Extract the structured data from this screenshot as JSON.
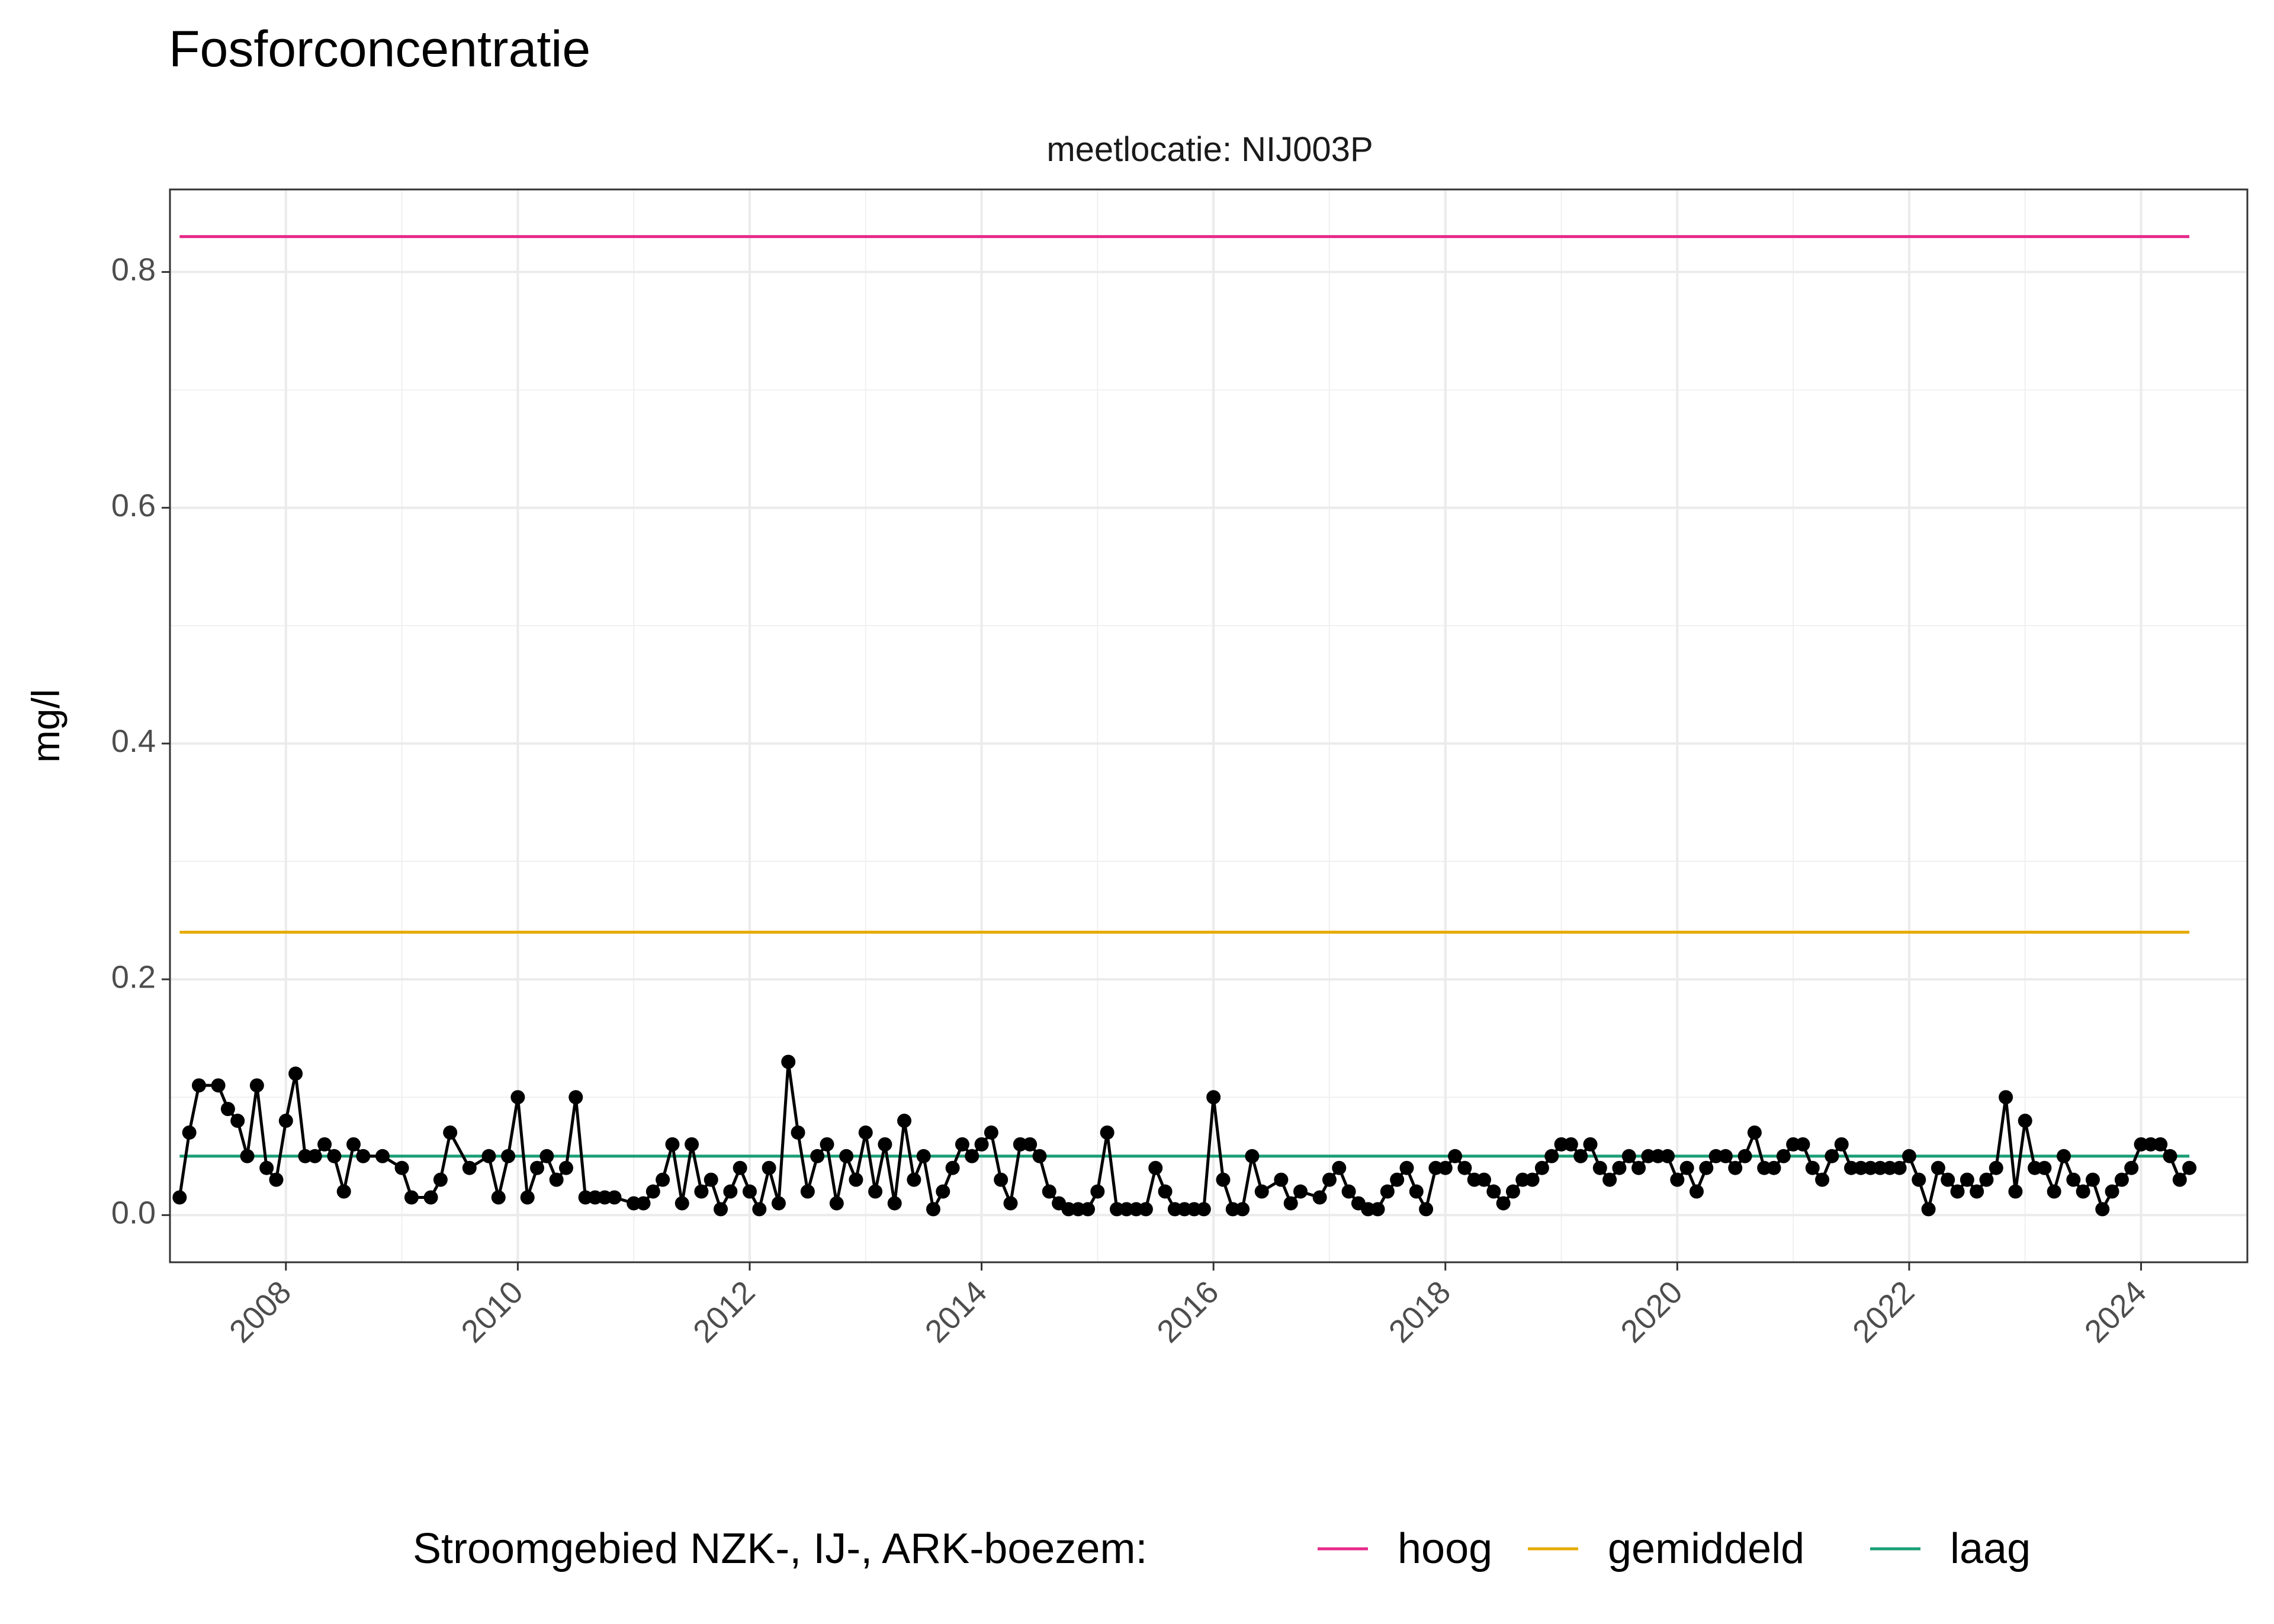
{
  "chart_data": {
    "type": "line",
    "title": "Fosforconcentratie",
    "facet_label": "meetlocatie: NIJ003P",
    "ylabel": "mg/l",
    "xlabel": "",
    "xlim": [
      "2007-01-01",
      "2024-12-01"
    ],
    "ylim": [
      -0.04,
      0.87
    ],
    "y_ticks": [
      0.0,
      0.2,
      0.4,
      0.6,
      0.8
    ],
    "y_tick_labels": [
      "0.0",
      "0.2",
      "0.4",
      "0.6",
      "0.8"
    ],
    "x_ticks": [
      2008,
      2010,
      2012,
      2014,
      2016,
      2018,
      2020,
      2022,
      2024
    ],
    "x_tick_labels": [
      "2008",
      "2010",
      "2012",
      "2014",
      "2016",
      "2018",
      "2020",
      "2022",
      "2024"
    ],
    "grid": true,
    "legend_position": "bottom",
    "legend_title": "Stroomgebied NZK-, IJ-, ARK-boezem:",
    "reference_lines": [
      {
        "name": "hoog",
        "value": 0.83,
        "color": "#e7298a",
        "x_start": "2007-02-01",
        "x_end": "2024-06-01"
      },
      {
        "name": "gemiddeld",
        "value": 0.24,
        "color": "#e6ab02",
        "x_start": "2007-02-01",
        "x_end": "2024-06-01"
      },
      {
        "name": "laag",
        "value": 0.05,
        "color": "#1b9e77",
        "x_start": "2007-02-01",
        "x_end": "2024-06-01"
      }
    ],
    "series": [
      {
        "color": "#000000",
        "points": [
          [
            "2007-02-01",
            0.015
          ],
          [
            "2007-03-01",
            0.07
          ],
          [
            "2007-04-01",
            0.11
          ],
          [
            "2007-06-01",
            0.11
          ],
          [
            "2007-07-01",
            0.09
          ],
          [
            "2007-08-01",
            0.08
          ],
          [
            "2007-09-01",
            0.05
          ],
          [
            "2007-10-01",
            0.11
          ],
          [
            "2007-11-01",
            0.04
          ],
          [
            "2007-12-01",
            0.03
          ],
          [
            "2008-01-01",
            0.08
          ],
          [
            "2008-02-01",
            0.12
          ],
          [
            "2008-03-01",
            0.05
          ],
          [
            "2008-04-01",
            0.05
          ],
          [
            "2008-05-01",
            0.06
          ],
          [
            "2008-06-01",
            0.05
          ],
          [
            "2008-07-01",
            0.02
          ],
          [
            "2008-08-01",
            0.06
          ],
          [
            "2008-09-01",
            0.05
          ],
          [
            "2008-11-01",
            0.05
          ],
          [
            "2009-01-01",
            0.04
          ],
          [
            "2009-02-01",
            0.015
          ],
          [
            "2009-04-01",
            0.015
          ],
          [
            "2009-05-01",
            0.03
          ],
          [
            "2009-06-01",
            0.07
          ],
          [
            "2009-08-01",
            0.04
          ],
          [
            "2009-10-01",
            0.05
          ],
          [
            "2009-11-01",
            0.015
          ],
          [
            "2009-12-01",
            0.05
          ],
          [
            "2010-01-01",
            0.1
          ],
          [
            "2010-02-01",
            0.015
          ],
          [
            "2010-03-01",
            0.04
          ],
          [
            "2010-04-01",
            0.05
          ],
          [
            "2010-05-01",
            0.03
          ],
          [
            "2010-06-01",
            0.04
          ],
          [
            "2010-07-01",
            0.1
          ],
          [
            "2010-08-01",
            0.015
          ],
          [
            "2010-09-01",
            0.015
          ],
          [
            "2010-10-01",
            0.015
          ],
          [
            "2010-11-01",
            0.015
          ],
          [
            "2011-01-01",
            0.01
          ],
          [
            "2011-02-01",
            0.01
          ],
          [
            "2011-03-01",
            0.02
          ],
          [
            "2011-04-01",
            0.03
          ],
          [
            "2011-05-01",
            0.06
          ],
          [
            "2011-06-01",
            0.01
          ],
          [
            "2011-07-01",
            0.06
          ],
          [
            "2011-08-01",
            0.02
          ],
          [
            "2011-09-01",
            0.03
          ],
          [
            "2011-10-01",
            0.005
          ],
          [
            "2011-11-01",
            0.02
          ],
          [
            "2011-12-01",
            0.04
          ],
          [
            "2012-01-01",
            0.02
          ],
          [
            "2012-02-01",
            0.005
          ],
          [
            "2012-03-01",
            0.04
          ],
          [
            "2012-04-01",
            0.01
          ],
          [
            "2012-05-01",
            0.13
          ],
          [
            "2012-06-01",
            0.07
          ],
          [
            "2012-07-01",
            0.02
          ],
          [
            "2012-08-01",
            0.05
          ],
          [
            "2012-09-01",
            0.06
          ],
          [
            "2012-10-01",
            0.01
          ],
          [
            "2012-11-01",
            0.05
          ],
          [
            "2012-12-01",
            0.03
          ],
          [
            "2013-01-01",
            0.07
          ],
          [
            "2013-02-01",
            0.02
          ],
          [
            "2013-03-01",
            0.06
          ],
          [
            "2013-04-01",
            0.01
          ],
          [
            "2013-05-01",
            0.08
          ],
          [
            "2013-06-01",
            0.03
          ],
          [
            "2013-07-01",
            0.05
          ],
          [
            "2013-08-01",
            0.005
          ],
          [
            "2013-09-01",
            0.02
          ],
          [
            "2013-10-01",
            0.04
          ],
          [
            "2013-11-01",
            0.06
          ],
          [
            "2013-12-01",
            0.05
          ],
          [
            "2014-01-01",
            0.06
          ],
          [
            "2014-02-01",
            0.07
          ],
          [
            "2014-03-01",
            0.03
          ],
          [
            "2014-04-01",
            0.01
          ],
          [
            "2014-05-01",
            0.06
          ],
          [
            "2014-06-01",
            0.06
          ],
          [
            "2014-07-01",
            0.05
          ],
          [
            "2014-08-01",
            0.02
          ],
          [
            "2014-09-01",
            0.01
          ],
          [
            "2014-10-01",
            0.005
          ],
          [
            "2014-11-01",
            0.005
          ],
          [
            "2014-12-01",
            0.005
          ],
          [
            "2015-01-01",
            0.02
          ],
          [
            "2015-02-01",
            0.07
          ],
          [
            "2015-03-01",
            0.005
          ],
          [
            "2015-04-01",
            0.005
          ],
          [
            "2015-05-01",
            0.005
          ],
          [
            "2015-06-01",
            0.005
          ],
          [
            "2015-07-01",
            0.04
          ],
          [
            "2015-08-01",
            0.02
          ],
          [
            "2015-09-01",
            0.005
          ],
          [
            "2015-10-01",
            0.005
          ],
          [
            "2015-11-01",
            0.005
          ],
          [
            "2015-12-01",
            0.005
          ],
          [
            "2016-01-01",
            0.1
          ],
          [
            "2016-02-01",
            0.03
          ],
          [
            "2016-03-01",
            0.005
          ],
          [
            "2016-04-01",
            0.005
          ],
          [
            "2016-05-01",
            0.05
          ],
          [
            "2016-06-01",
            0.02
          ],
          [
            "2016-08-01",
            0.03
          ],
          [
            "2016-09-01",
            0.01
          ],
          [
            "2016-10-01",
            0.02
          ],
          [
            "2016-12-01",
            0.015
          ],
          [
            "2017-01-01",
            0.03
          ],
          [
            "2017-02-01",
            0.04
          ],
          [
            "2017-03-01",
            0.02
          ],
          [
            "2017-04-01",
            0.01
          ],
          [
            "2017-05-01",
            0.005
          ],
          [
            "2017-06-01",
            0.005
          ],
          [
            "2017-07-01",
            0.02
          ],
          [
            "2017-08-01",
            0.03
          ],
          [
            "2017-09-01",
            0.04
          ],
          [
            "2017-10-01",
            0.02
          ],
          [
            "2017-11-01",
            0.005
          ],
          [
            "2017-12-01",
            0.04
          ],
          [
            "2018-01-01",
            0.04
          ],
          [
            "2018-02-01",
            0.05
          ],
          [
            "2018-03-01",
            0.04
          ],
          [
            "2018-04-01",
            0.03
          ],
          [
            "2018-05-01",
            0.03
          ],
          [
            "2018-06-01",
            0.02
          ],
          [
            "2018-07-01",
            0.01
          ],
          [
            "2018-08-01",
            0.02
          ],
          [
            "2018-09-01",
            0.03
          ],
          [
            "2018-10-01",
            0.03
          ],
          [
            "2018-11-01",
            0.04
          ],
          [
            "2018-12-01",
            0.05
          ],
          [
            "2019-01-01",
            0.06
          ],
          [
            "2019-02-01",
            0.06
          ],
          [
            "2019-03-01",
            0.05
          ],
          [
            "2019-04-01",
            0.06
          ],
          [
            "2019-05-01",
            0.04
          ],
          [
            "2019-06-01",
            0.03
          ],
          [
            "2019-07-01",
            0.04
          ],
          [
            "2019-08-01",
            0.05
          ],
          [
            "2019-09-01",
            0.04
          ],
          [
            "2019-10-01",
            0.05
          ],
          [
            "2019-11-01",
            0.05
          ],
          [
            "2019-12-01",
            0.05
          ],
          [
            "2020-01-01",
            0.03
          ],
          [
            "2020-02-01",
            0.04
          ],
          [
            "2020-03-01",
            0.02
          ],
          [
            "2020-04-01",
            0.04
          ],
          [
            "2020-05-01",
            0.05
          ],
          [
            "2020-06-01",
            0.05
          ],
          [
            "2020-07-01",
            0.04
          ],
          [
            "2020-08-01",
            0.05
          ],
          [
            "2020-09-01",
            0.07
          ],
          [
            "2020-10-01",
            0.04
          ],
          [
            "2020-11-01",
            0.04
          ],
          [
            "2020-12-01",
            0.05
          ],
          [
            "2021-01-01",
            0.06
          ],
          [
            "2021-02-01",
            0.06
          ],
          [
            "2021-03-01",
            0.04
          ],
          [
            "2021-04-01",
            0.03
          ],
          [
            "2021-05-01",
            0.05
          ],
          [
            "2021-06-01",
            0.06
          ],
          [
            "2021-07-01",
            0.04
          ],
          [
            "2021-08-01",
            0.04
          ],
          [
            "2021-09-01",
            0.04
          ],
          [
            "2021-10-01",
            0.04
          ],
          [
            "2021-11-01",
            0.04
          ],
          [
            "2021-12-01",
            0.04
          ],
          [
            "2022-01-01",
            0.05
          ],
          [
            "2022-02-01",
            0.03
          ],
          [
            "2022-03-01",
            0.005
          ],
          [
            "2022-04-01",
            0.04
          ],
          [
            "2022-05-01",
            0.03
          ],
          [
            "2022-06-01",
            0.02
          ],
          [
            "2022-07-01",
            0.03
          ],
          [
            "2022-08-01",
            0.02
          ],
          [
            "2022-09-01",
            0.03
          ],
          [
            "2022-10-01",
            0.04
          ],
          [
            "2022-11-01",
            0.1
          ],
          [
            "2022-12-01",
            0.02
          ],
          [
            "2023-01-01",
            0.08
          ],
          [
            "2023-02-01",
            0.04
          ],
          [
            "2023-03-01",
            0.04
          ],
          [
            "2023-04-01",
            0.02
          ],
          [
            "2023-05-01",
            0.05
          ],
          [
            "2023-06-01",
            0.03
          ],
          [
            "2023-07-01",
            0.02
          ],
          [
            "2023-08-01",
            0.03
          ],
          [
            "2023-09-01",
            0.005
          ],
          [
            "2023-10-01",
            0.02
          ],
          [
            "2023-11-01",
            0.03
          ],
          [
            "2023-12-01",
            0.04
          ],
          [
            "2024-01-01",
            0.06
          ],
          [
            "2024-02-01",
            0.06
          ],
          [
            "2024-03-01",
            0.06
          ],
          [
            "2024-04-01",
            0.05
          ],
          [
            "2024-05-01",
            0.03
          ],
          [
            "2024-06-01",
            0.04
          ]
        ]
      }
    ]
  }
}
